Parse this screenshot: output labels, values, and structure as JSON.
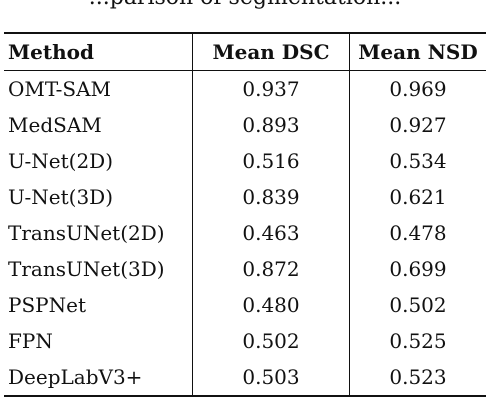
{
  "caption": "...parison of segmentation...",
  "table": {
    "headers": [
      "Method",
      "Mean DSC",
      "Mean NSD"
    ],
    "rows": [
      {
        "method": "OMT-SAM",
        "dsc": "0.937",
        "nsd": "0.969"
      },
      {
        "method": "MedSAM",
        "dsc": "0.893",
        "nsd": "0.927"
      },
      {
        "method": "U-Net(2D)",
        "dsc": "0.516",
        "nsd": "0.534"
      },
      {
        "method": "U-Net(3D)",
        "dsc": "0.839",
        "nsd": "0.621"
      },
      {
        "method": "TransUNet(2D)",
        "dsc": "0.463",
        "nsd": "0.478"
      },
      {
        "method": "TransUNet(3D)",
        "dsc": "0.872",
        "nsd": "0.699"
      },
      {
        "method": "PSPNet",
        "dsc": "0.480",
        "nsd": "0.502"
      },
      {
        "method": "FPN",
        "dsc": "0.502",
        "nsd": "0.525"
      },
      {
        "method": "DeepLabV3+",
        "dsc": "0.503",
        "nsd": "0.523"
      }
    ]
  }
}
